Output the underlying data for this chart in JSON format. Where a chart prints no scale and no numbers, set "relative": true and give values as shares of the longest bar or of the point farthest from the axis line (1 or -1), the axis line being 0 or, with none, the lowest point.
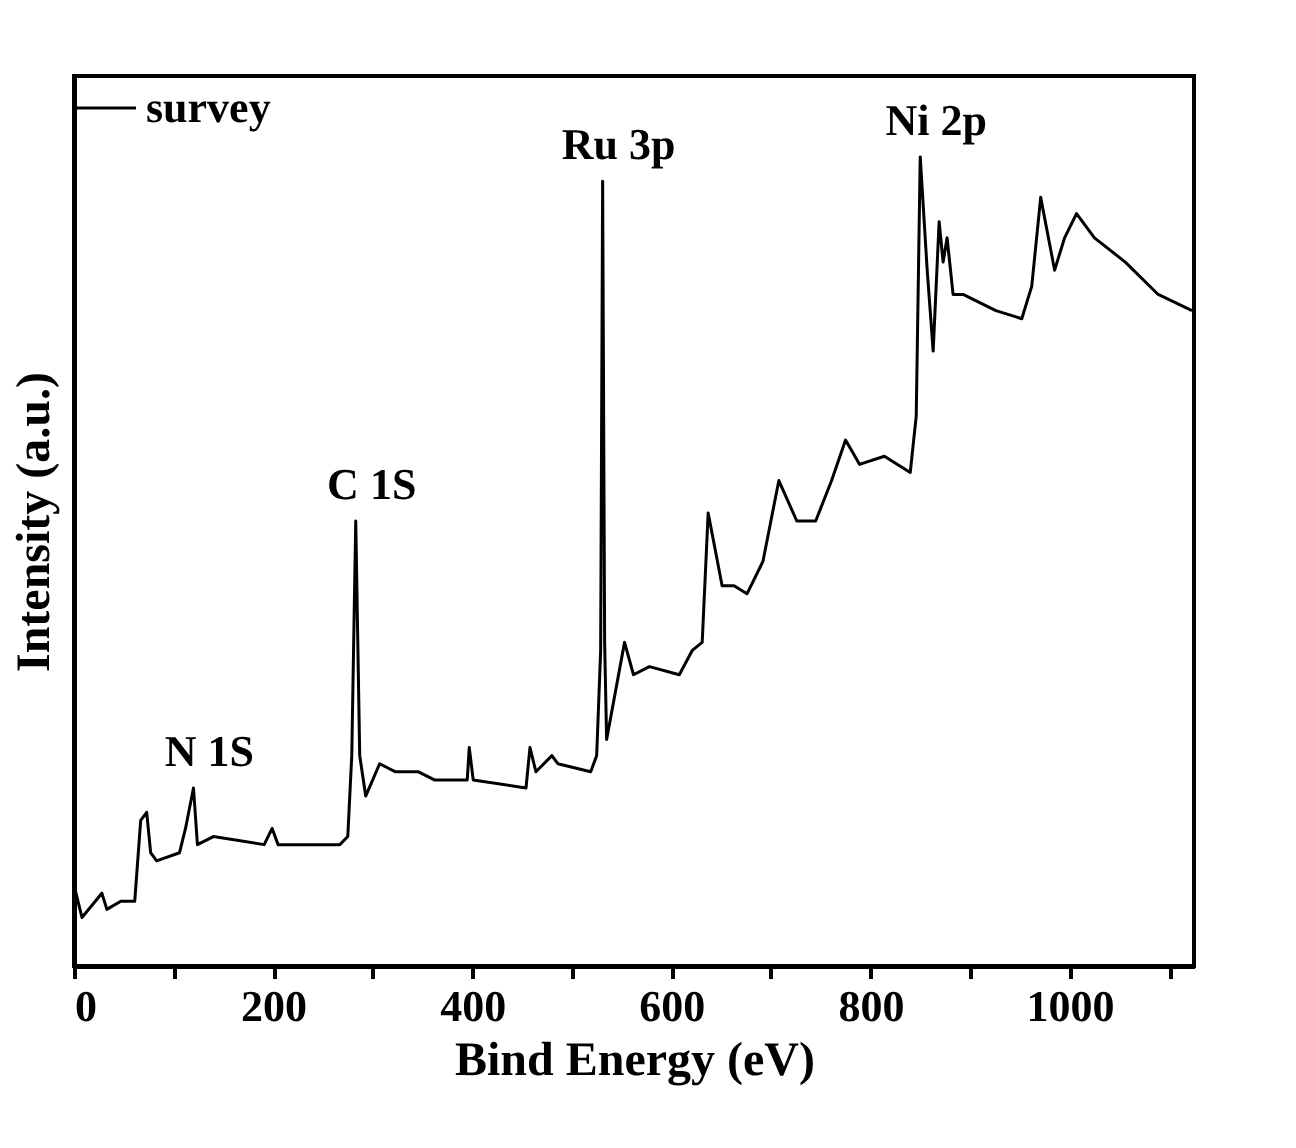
{
  "chart_data": {
    "type": "line",
    "xlabel": "Bind Energy (eV)",
    "ylabel": "Intensity (a.u.)",
    "relative": true,
    "legend": "top left",
    "grid": false,
    "marker": "none",
    "line_style": "solid",
    "xlim": [
      0,
      1125
    ],
    "xticks": [
      0,
      {
        "value": 100,
        "label": null
      },
      200,
      {
        "value": 300,
        "label": null
      },
      400,
      {
        "value": 500,
        "label": null
      },
      600,
      {
        "value": 700,
        "label": null
      },
      800,
      {
        "value": 900,
        "label": null
      },
      1000,
      {
        "value": 1100,
        "label": null
      }
    ],
    "annotations": [
      {
        "text": "N 1S",
        "x": 120,
        "y": 0.22
      },
      {
        "text": "C 1S",
        "x": 283,
        "y": 0.55
      },
      {
        "text": "Ru 3p",
        "x": 531,
        "y": 0.97
      },
      {
        "text": "Ni 2p",
        "x": 850,
        "y": 1.0
      }
    ],
    "series": [
      {
        "name": "survey",
        "color": "#000000",
        "x": [
          0,
          8,
          28,
          33,
          47,
          61,
          67,
          73,
          77,
          83,
          106,
          112,
          120,
          124,
          140,
          191,
          199,
          205,
          267,
          275,
          279,
          283,
          287,
          293,
          307,
          323,
          346,
          362,
          395,
          397,
          401,
          454,
          458,
          464,
          480,
          486,
          519,
          525,
          529,
          531,
          533,
          535,
          553,
          562,
          578,
          608,
          621,
          631,
          637,
          651,
          663,
          676,
          692,
          708,
          726,
          745,
          761,
          775,
          789,
          814,
          840,
          846,
          850,
          857,
          863,
          869,
          873,
          877,
          883,
          893,
          926,
          952,
          962,
          971,
          985,
          995,
          1007,
          1025,
          1056,
          1089,
          1123
        ],
        "values": [
          0.1,
          0.06,
          0.09,
          0.07,
          0.08,
          0.08,
          0.18,
          0.19,
          0.14,
          0.13,
          0.14,
          0.17,
          0.22,
          0.15,
          0.16,
          0.15,
          0.17,
          0.15,
          0.15,
          0.16,
          0.26,
          0.55,
          0.26,
          0.21,
          0.25,
          0.24,
          0.24,
          0.23,
          0.23,
          0.27,
          0.23,
          0.22,
          0.27,
          0.24,
          0.26,
          0.25,
          0.24,
          0.26,
          0.39,
          0.97,
          0.4,
          0.28,
          0.4,
          0.36,
          0.37,
          0.36,
          0.39,
          0.4,
          0.56,
          0.47,
          0.47,
          0.46,
          0.5,
          0.6,
          0.55,
          0.55,
          0.6,
          0.65,
          0.62,
          0.63,
          0.61,
          0.68,
          1.0,
          0.86,
          0.76,
          0.92,
          0.87,
          0.9,
          0.83,
          0.83,
          0.81,
          0.8,
          0.84,
          0.95,
          0.86,
          0.9,
          0.93,
          0.9,
          0.87,
          0.83,
          0.81
        ]
      }
    ]
  }
}
